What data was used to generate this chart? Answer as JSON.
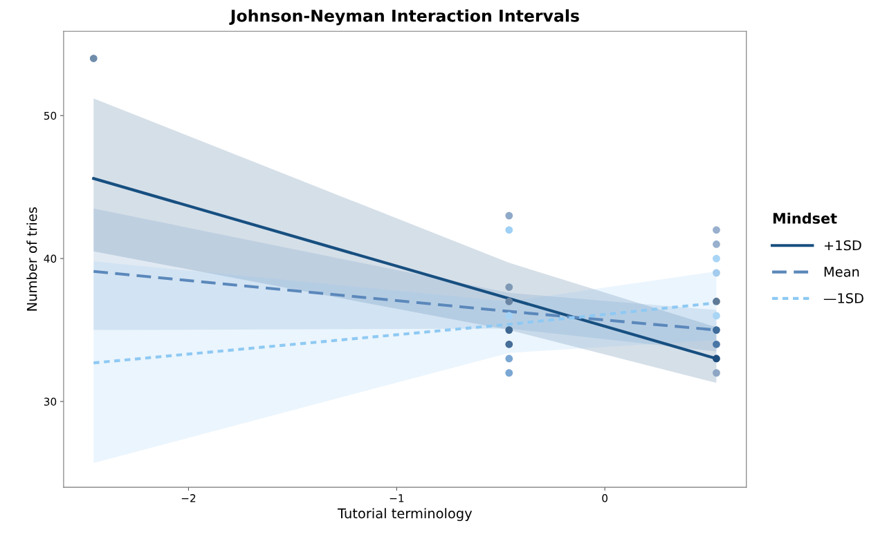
{
  "chart_data": {
    "type": "line",
    "title": "Johnson-Neyman Interaction Intervals",
    "xlabel": "Tutorial terminology",
    "ylabel": "Number of tries",
    "legend_title": "Mindset",
    "xlim": [
      -2.6,
      0.68
    ],
    "ylim": [
      24,
      55.9
    ],
    "xticks": [
      {
        "value": -2,
        "label": "−2"
      },
      {
        "value": -1,
        "label": "−1"
      },
      0
    ],
    "yticks": [
      30,
      40,
      50
    ],
    "grid": false,
    "legend": "right",
    "series": [
      {
        "type": "scatter",
        "x": [
          -2.456,
          -0.46,
          -0.46,
          -0.46,
          -0.46,
          -0.46,
          -0.46,
          -0.46,
          -0.46,
          -0.46,
          0.536,
          0.536,
          0.536,
          0.536,
          0.536,
          0.536,
          0.536,
          0.536,
          0.536,
          0.536
        ],
        "values": [
          54,
          43,
          42,
          38,
          37,
          36,
          35,
          34,
          33,
          32,
          42,
          41,
          40,
          39,
          37,
          36,
          35,
          34,
          33,
          32
        ],
        "colors": [
          "#6f8cab",
          "#8fa9c8",
          "#9fd0f5",
          "#7f99b5",
          "#6a85a3",
          "#a5d3f5",
          "#3d6690",
          "#456e98",
          "#7ba7d4",
          "#7ba7d4",
          "#98b0cd",
          "#98b0cd",
          "#a9d5f5",
          "#a2cbed",
          "#5e7a97",
          "#a9d5f5",
          "#3d6b9a",
          "#4a76a6",
          "#1d4d7c",
          "#8ea6c4"
        ]
      },
      {
        "name": "+1SD",
        "color": "#174f80",
        "line_style": "solid",
        "x": [
          -2.456,
          -0.46,
          0.536
        ],
        "values": [
          45.6,
          37.2,
          33.0
        ],
        "lower": [
          40.5,
          35.0,
          31.3
        ],
        "upper": [
          51.2,
          39.7,
          35.2
        ]
      },
      {
        "name": "Mean",
        "color": "#5b88bb",
        "line_style": "dashed",
        "x": [
          -2.456,
          -0.46,
          0.536
        ],
        "values": [
          39.1,
          36.3,
          35.0
        ],
        "lower": [
          35.0,
          35.1,
          33.5
        ],
        "upper": [
          43.5,
          37.6,
          36.4
        ]
      },
      {
        "name": "—1SD",
        "color": "#8ec9f3",
        "line_style": "dotted",
        "x": [
          -2.456,
          -0.46,
          0.536
        ],
        "values": [
          32.7,
          35.4,
          36.9
        ],
        "lower": [
          25.7,
          33.4,
          34.3
        ],
        "upper": [
          39.8,
          37.0,
          39.1
        ]
      }
    ]
  }
}
